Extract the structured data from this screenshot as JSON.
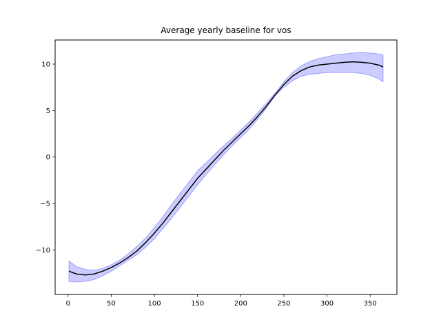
{
  "chart_data": {
    "type": "line",
    "title": "Average yearly baseline for vos",
    "xlabel": "",
    "ylabel": "",
    "xlim": [
      -15,
      381
    ],
    "ylim": [
      -14.8,
      12.6
    ],
    "x_ticks": [
      0,
      50,
      100,
      150,
      200,
      250,
      300,
      350
    ],
    "y_ticks": [
      -10,
      -5,
      0,
      5,
      10
    ],
    "y_tick_labels": [
      "−10",
      "−5",
      "0",
      "5",
      "10"
    ],
    "grid": false,
    "colors": {
      "line": "#000000",
      "band_fill": "#0000ff",
      "band_edge": "#0000ff"
    },
    "series": [
      {
        "x": [
          1,
          10,
          20,
          30,
          40,
          50,
          60,
          70,
          80,
          90,
          100,
          110,
          120,
          130,
          140,
          150,
          160,
          170,
          180,
          190,
          200,
          210,
          220,
          230,
          240,
          250,
          260,
          270,
          280,
          290,
          300,
          310,
          320,
          330,
          340,
          350,
          360,
          365
        ],
        "y": [
          -12.3,
          -12.6,
          -12.7,
          -12.6,
          -12.3,
          -11.9,
          -11.4,
          -10.8,
          -10.1,
          -9.2,
          -8.2,
          -7.1,
          -5.9,
          -4.7,
          -3.5,
          -2.3,
          -1.3,
          -0.3,
          0.7,
          1.6,
          2.5,
          3.4,
          4.4,
          5.5,
          6.7,
          7.8,
          8.7,
          9.3,
          9.7,
          9.9,
          10.0,
          10.1,
          10.2,
          10.25,
          10.2,
          10.1,
          9.9,
          9.7
        ],
        "lower": [
          -13.4,
          -13.45,
          -13.4,
          -13.2,
          -12.8,
          -12.3,
          -11.7,
          -11.1,
          -10.5,
          -9.7,
          -8.8,
          -7.7,
          -6.6,
          -5.4,
          -4.2,
          -3.0,
          -1.9,
          -0.8,
          0.2,
          1.2,
          2.1,
          3.0,
          4.1,
          5.3,
          6.6,
          7.5,
          8.2,
          8.7,
          8.9,
          9.0,
          9.1,
          9.1,
          9.1,
          9.1,
          9.0,
          8.8,
          8.4,
          8.1
        ],
        "upper": [
          -11.2,
          -11.8,
          -12.1,
          -12.2,
          -12.0,
          -11.6,
          -11.1,
          -10.4,
          -9.6,
          -8.7,
          -7.6,
          -6.4,
          -5.1,
          -3.9,
          -2.7,
          -1.5,
          -0.6,
          0.3,
          1.2,
          2.0,
          2.9,
          3.8,
          4.8,
          5.8,
          6.9,
          8.1,
          9.1,
          9.8,
          10.3,
          10.6,
          10.8,
          11.0,
          11.1,
          11.2,
          11.25,
          11.2,
          11.1,
          11.0
        ]
      }
    ]
  }
}
